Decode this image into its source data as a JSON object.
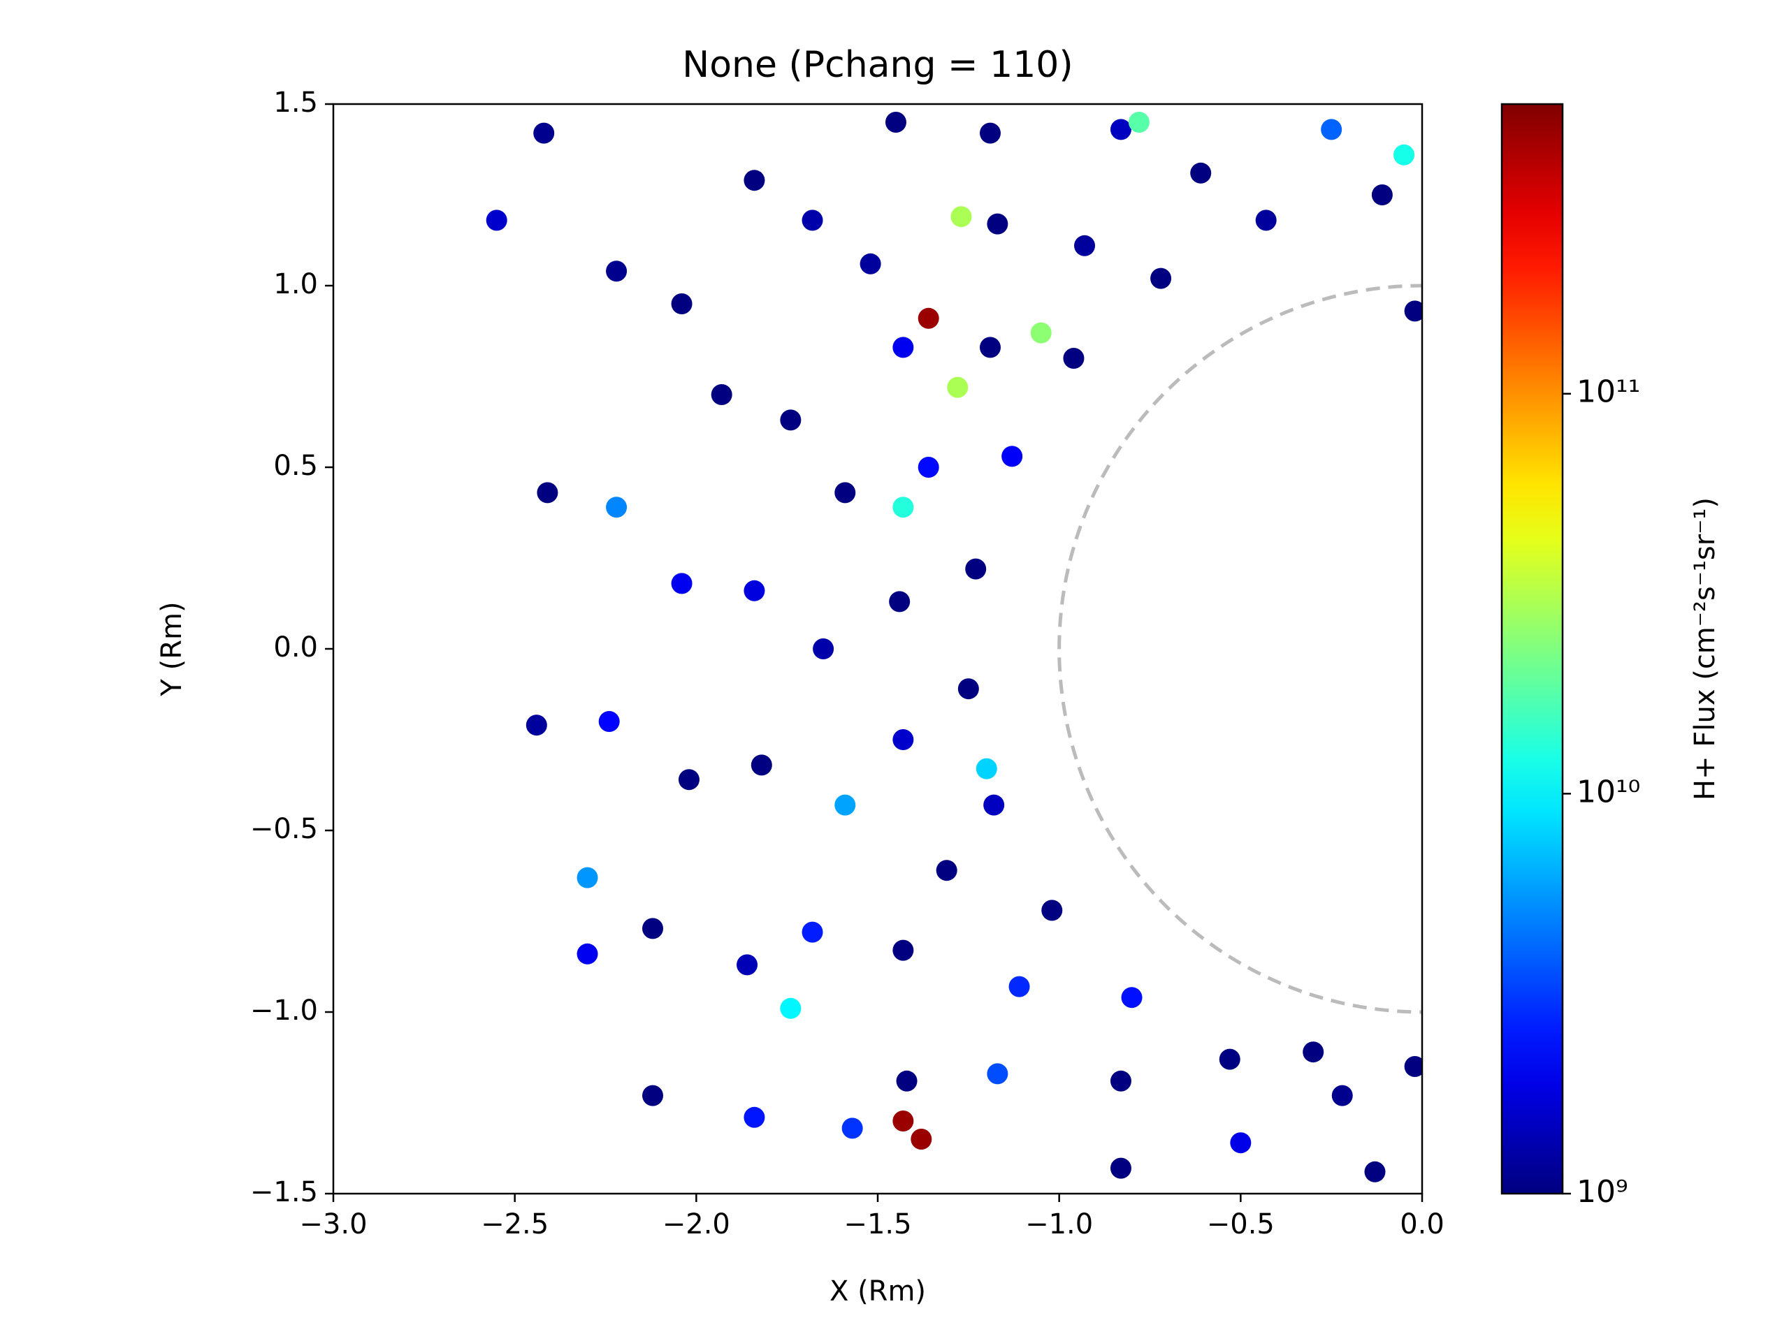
{
  "chart_data": {
    "type": "scatter",
    "title": "None  (Pchang = 110)",
    "xlabel": "X (Rm)",
    "ylabel": "Y (Rm)",
    "x": [
      -2.22,
      -2.41,
      -2.44,
      -2.3,
      -2.12,
      -2.55,
      -2.42,
      -1.84,
      -2.04,
      -2.22,
      -2.24,
      -2.12,
      -1.84,
      -1.45,
      -1.68,
      -1.93,
      -2.04,
      -2.02,
      -1.86,
      -1.57,
      -1.19,
      -1.52,
      -1.74,
      -1.84,
      -1.82,
      -1.68,
      -1.42,
      -0.83,
      -1.17,
      -1.43,
      -1.59,
      -1.65,
      -1.59,
      -1.43,
      -1.17,
      -0.83,
      -0.25,
      -0.61,
      -0.93,
      -1.19,
      -1.36,
      -1.44,
      -1.43,
      -1.31,
      -1.11,
      -0.83,
      -0.5,
      -0.13,
      -0.11,
      -0.43,
      -0.72,
      -0.96,
      -1.13,
      -1.23,
      -1.25,
      -1.18,
      -1.02,
      -0.8,
      -0.53,
      -0.22,
      -0.02,
      -0.3,
      -0.02,
      -0.05,
      -1.36,
      -1.43,
      -1.38,
      -1.27,
      -1.28,
      -1.05,
      -1.43,
      -0.78,
      -1.2,
      -2.3,
      -1.74
    ],
    "y": [
      1.04,
      0.43,
      -0.21,
      -0.84,
      -1.23,
      1.18,
      1.42,
      1.29,
      0.95,
      0.39,
      -0.2,
      -0.77,
      -1.29,
      1.45,
      1.18,
      0.7,
      0.18,
      -0.36,
      -0.87,
      -1.32,
      1.42,
      1.06,
      0.63,
      0.16,
      -0.32,
      -0.78,
      -1.19,
      1.43,
      1.17,
      0.83,
      0.43,
      0.0,
      -0.43,
      -0.83,
      -1.17,
      -1.43,
      1.43,
      1.31,
      1.11,
      0.83,
      0.5,
      0.13,
      -0.25,
      -0.61,
      -0.93,
      -1.19,
      -1.36,
      -1.44,
      1.25,
      1.18,
      1.02,
      0.8,
      0.53,
      0.22,
      -0.11,
      -0.43,
      -0.72,
      -0.96,
      -1.13,
      -1.23,
      -1.15,
      -1.11,
      0.93,
      1.36,
      0.91,
      -1.3,
      -1.35,
      1.19,
      0.72,
      0.87,
      0.39,
      1.45,
      -0.33,
      -0.63,
      -0.99
    ],
    "values": [
      1100000000.0,
      1000000000.0,
      1200000000.0,
      2000000000.0,
      1000000000.0,
      1600000000.0,
      1100000000.0,
      1000000000.0,
      1000000000.0,
      5000000000.0,
      2200000000.0,
      1000000000.0,
      2500000000.0,
      1000000000.0,
      1300000000.0,
      1000000000.0,
      2000000000.0,
      1000000000.0,
      1400000000.0,
      3000000000.0,
      1000000000.0,
      1200000000.0,
      1000000000.0,
      1800000000.0,
      1000000000.0,
      2600000000.0,
      1000000000.0,
      1500000000.0,
      1000000000.0,
      2000000000.0,
      1000000000.0,
      1300000000.0,
      6000000000.0,
      1000000000.0,
      3500000000.0,
      1000000000.0,
      4000000000.0,
      1000000000.0,
      1200000000.0,
      1000000000.0,
      2300000000.0,
      1000000000.0,
      1600000000.0,
      1000000000.0,
      2800000000.0,
      1000000000.0,
      1900000000.0,
      1000000000.0,
      1000000000.0,
      1200000000.0,
      1000000000.0,
      1000000000.0,
      2100000000.0,
      1000000000.0,
      1000000000.0,
      1500000000.0,
      1000000000.0,
      2400000000.0,
      1000000000.0,
      1100000000.0,
      1000000000.0,
      1000000000.0,
      1000000000.0,
      12000000000.0,
      450000000000.0,
      450000000000.0,
      450000000000.0,
      30000000000.0,
      30000000000.0,
      25000000000.0,
      13000000000.0,
      18000000000.0,
      8000000000.0,
      5500000000.0,
      10000000000.0
    ],
    "xlim": [
      -3,
      0
    ],
    "ylim": [
      -1.5,
      1.5
    ],
    "xticks": [
      {
        "value": -3,
        "label": "−3.0"
      },
      {
        "value": -2.5,
        "label": "−2.5"
      },
      {
        "value": -2,
        "label": "−2.0"
      },
      {
        "value": -1.5,
        "label": "−1.5"
      },
      {
        "value": -1,
        "label": "−1.0"
      },
      {
        "value": -0.5,
        "label": "−0.5"
      },
      {
        "value": 0,
        "label": "0.0"
      }
    ],
    "yticks": [
      {
        "value": -1.5,
        "label": "−1.5"
      },
      {
        "value": -1,
        "label": "−1.0"
      },
      {
        "value": -0.5,
        "label": "−0.5"
      },
      {
        "value": 0,
        "label": "0.0"
      },
      0.5,
      {
        "value": 1,
        "label": "1.0"
      },
      1.5
    ],
    "colorbar": {
      "label": "H+ Flux (cm⁻²s⁻¹sr⁻¹)",
      "colormap": "jet",
      "log": true,
      "lim": [
        1000000000.0,
        530000000000.0
      ],
      "ticks": [
        {
          "value": 1000000000.0,
          "label": "10⁹"
        },
        {
          "value": 10000000000.0,
          "label": "10¹⁰"
        },
        {
          "value": 100000000000.0,
          "label": "10¹¹"
        }
      ]
    },
    "reference_circle": {
      "radius": 1,
      "color": "#bbbbbb",
      "dashed": true
    }
  }
}
